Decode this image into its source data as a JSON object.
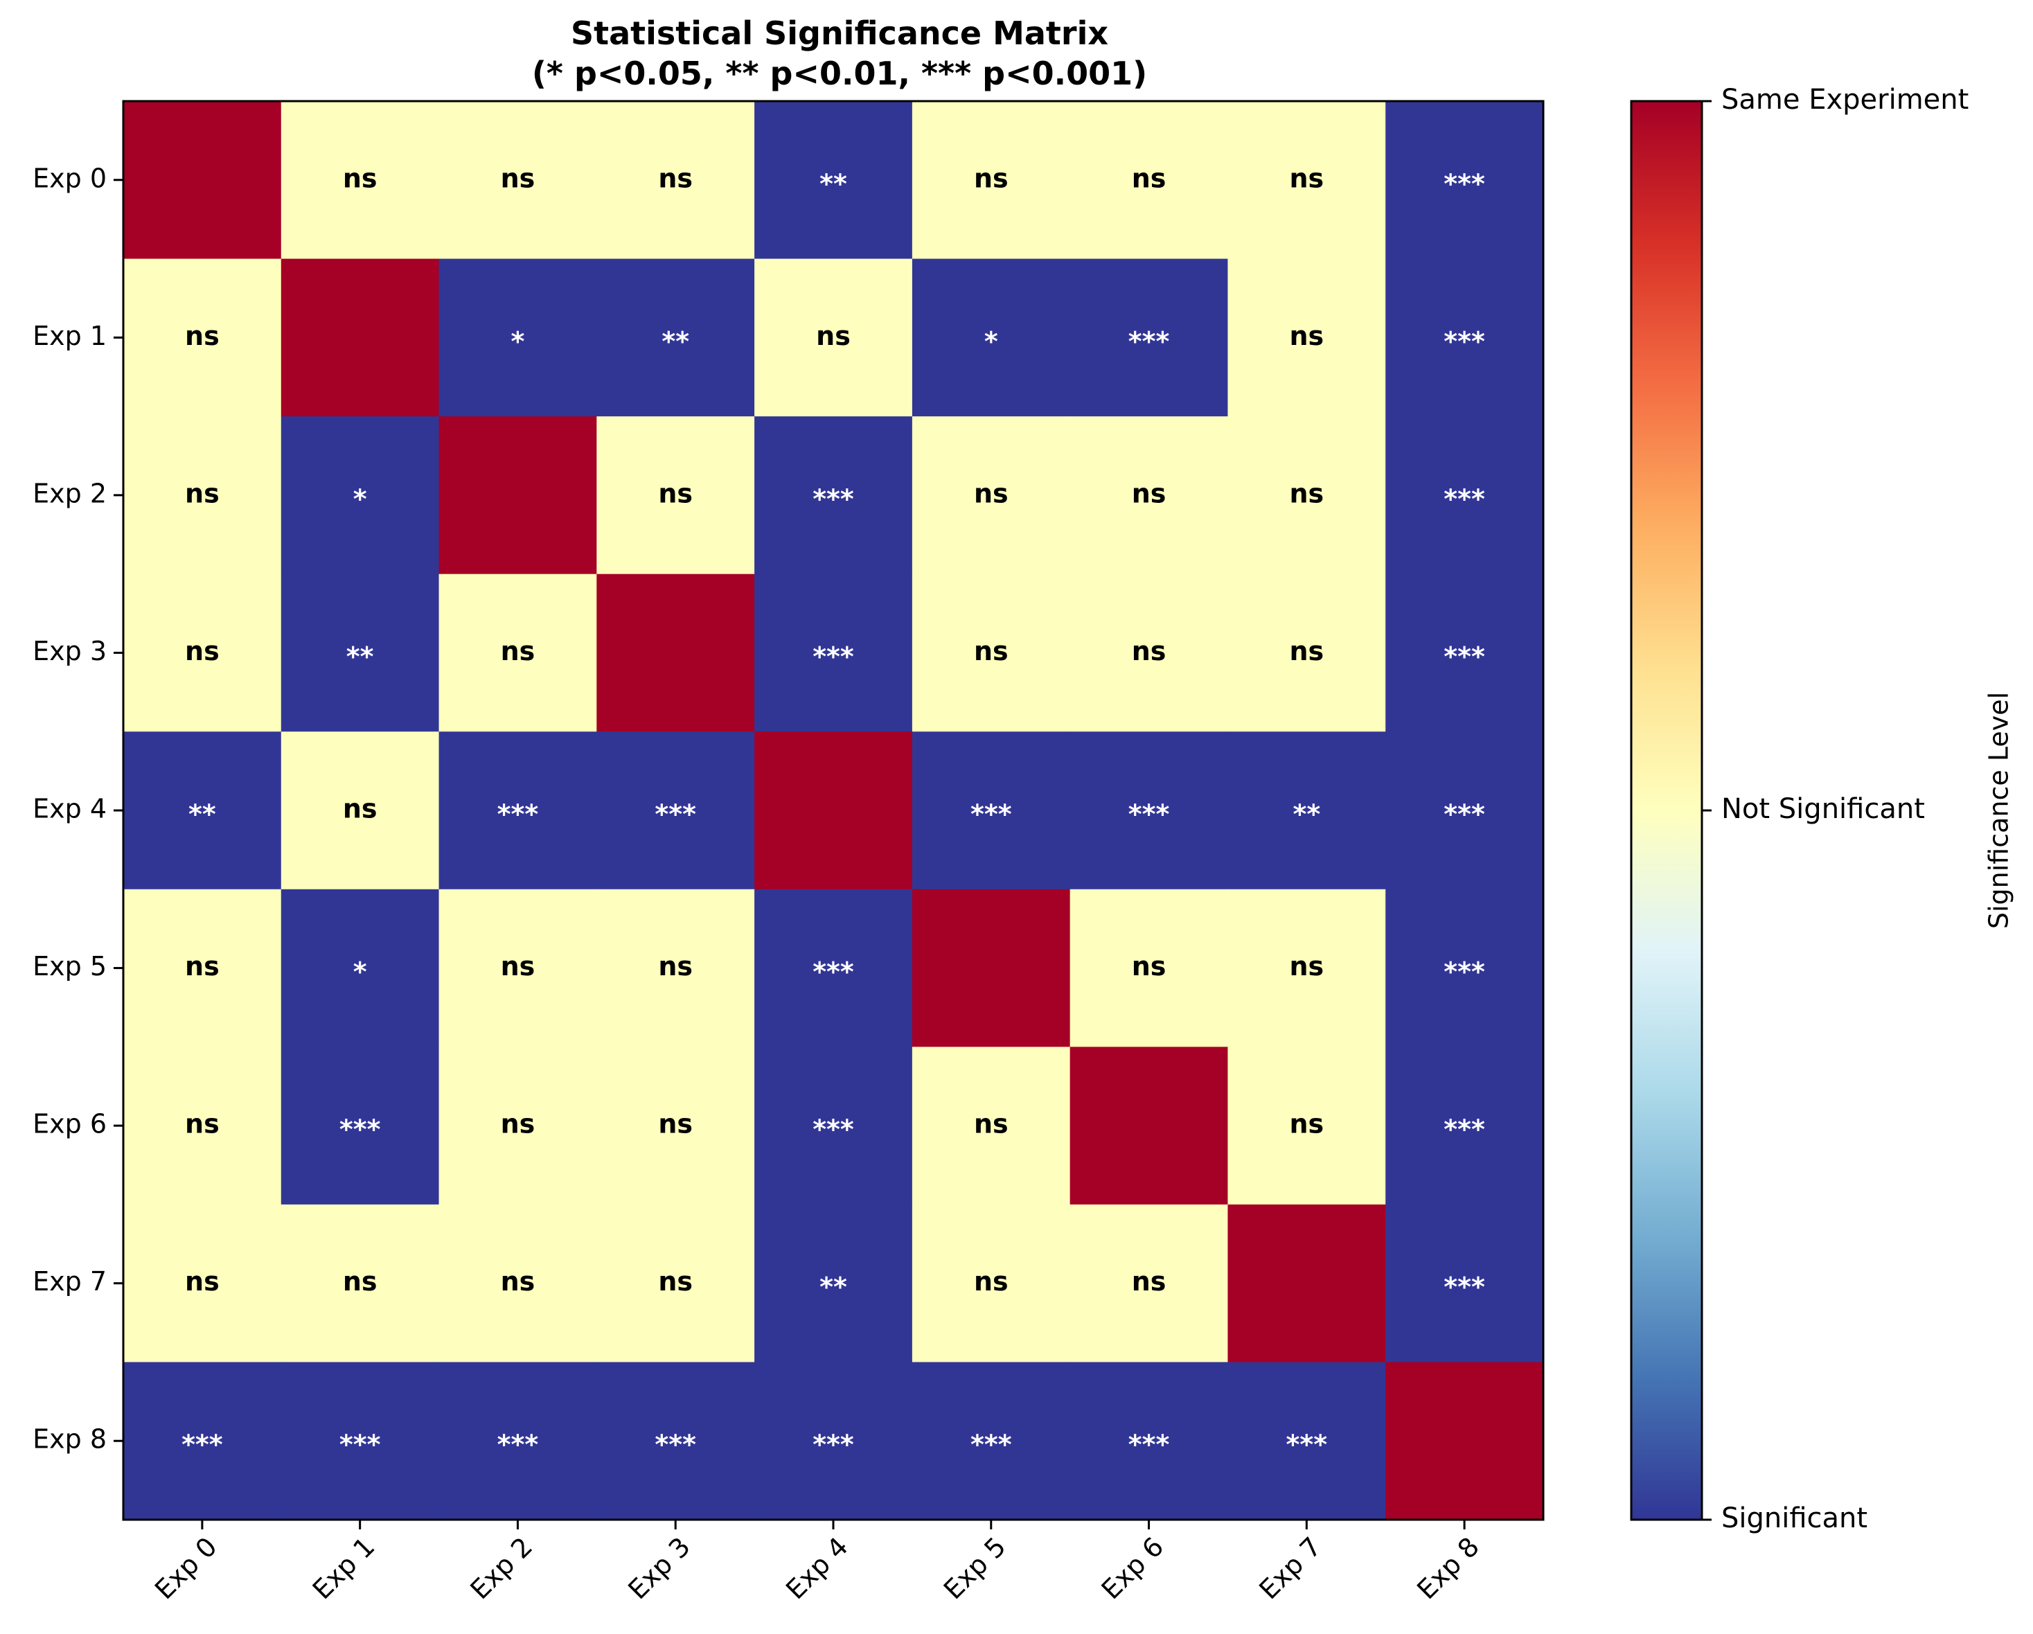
{
  "chart_data": {
    "type": "heatmap",
    "title": [
      "Statistical Significance Matrix",
      "(* p<0.05, ** p<0.01, *** p<0.001)"
    ],
    "x_labels": [
      "Exp 0",
      "Exp 1",
      "Exp 2",
      "Exp 3",
      "Exp 4",
      "Exp 5",
      "Exp 6",
      "Exp 7",
      "Exp 8"
    ],
    "y_labels": [
      "Exp 0",
      "Exp 1",
      "Exp 2",
      "Exp 3",
      "Exp 4",
      "Exp 5",
      "Exp 6",
      "Exp 7",
      "Exp 8"
    ],
    "values": [
      [
        1,
        0.5,
        0.5,
        0.5,
        0,
        0.5,
        0.5,
        0.5,
        0
      ],
      [
        0.5,
        1,
        0,
        0,
        0.5,
        0,
        0,
        0.5,
        0
      ],
      [
        0.5,
        0,
        1,
        0.5,
        0,
        0.5,
        0.5,
        0.5,
        0
      ],
      [
        0.5,
        0,
        0.5,
        1,
        0,
        0.5,
        0.5,
        0.5,
        0
      ],
      [
        0,
        0.5,
        0,
        0,
        1,
        0,
        0,
        0,
        0
      ],
      [
        0.5,
        0,
        0.5,
        0.5,
        0,
        1,
        0.5,
        0.5,
        0
      ],
      [
        0.5,
        0,
        0.5,
        0.5,
        0,
        0.5,
        1,
        0.5,
        0
      ],
      [
        0.5,
        0.5,
        0.5,
        0.5,
        0,
        0.5,
        0.5,
        1,
        0
      ],
      [
        0,
        0,
        0,
        0,
        0,
        0,
        0,
        0,
        1
      ]
    ],
    "annotations": [
      [
        "",
        "ns",
        "ns",
        "ns",
        "**",
        "ns",
        "ns",
        "ns",
        "***"
      ],
      [
        "ns",
        "",
        "*",
        "**",
        "ns",
        "*",
        "***",
        "ns",
        "***"
      ],
      [
        "ns",
        "*",
        "",
        "ns",
        "***",
        "ns",
        "ns",
        "ns",
        "***"
      ],
      [
        "ns",
        "**",
        "ns",
        "",
        "***",
        "ns",
        "ns",
        "ns",
        "***"
      ],
      [
        "**",
        "ns",
        "***",
        "***",
        "",
        "***",
        "***",
        "**",
        "***"
      ],
      [
        "ns",
        "*",
        "ns",
        "ns",
        "***",
        "",
        "ns",
        "ns",
        "***"
      ],
      [
        "ns",
        "***",
        "ns",
        "ns",
        "***",
        "ns",
        "",
        "ns",
        "***"
      ],
      [
        "ns",
        "ns",
        "ns",
        "ns",
        "**",
        "ns",
        "ns",
        "",
        "***"
      ],
      [
        "***",
        "***",
        "***",
        "***",
        "***",
        "***",
        "***",
        "***",
        ""
      ]
    ],
    "value_range": [
      0,
      1
    ],
    "colormap": "RdYlBu_r",
    "colorbar": {
      "label": "Significance Level",
      "ticks": [
        {
          "value": 0,
          "label": "Significant"
        },
        {
          "value": 0.5,
          "label": "Not Significant"
        },
        {
          "value": 1,
          "label": "Same Experiment"
        }
      ]
    },
    "colors": {
      "significant": "#313695",
      "not_significant": "#feffbe",
      "same": "#a50026"
    }
  }
}
